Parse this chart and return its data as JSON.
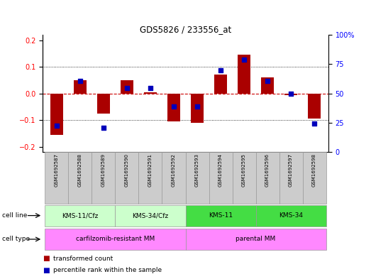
{
  "title": "GDS5826 / 233556_at",
  "samples": [
    "GSM1692587",
    "GSM1692588",
    "GSM1692589",
    "GSM1692590",
    "GSM1692591",
    "GSM1692592",
    "GSM1692593",
    "GSM1692594",
    "GSM1692595",
    "GSM1692596",
    "GSM1692597",
    "GSM1692598"
  ],
  "transformed_count": [
    -0.155,
    0.05,
    -0.075,
    0.05,
    0.005,
    -0.105,
    -0.11,
    0.07,
    0.145,
    0.06,
    -0.005,
    -0.095
  ],
  "percentile_rank": [
    20,
    62,
    18,
    55,
    55,
    38,
    38,
    72,
    82,
    62,
    50,
    22
  ],
  "ylim_left": [
    -0.22,
    0.22
  ],
  "ylim_right": [
    0,
    100
  ],
  "yticks_left": [
    -0.2,
    -0.1,
    0.0,
    0.1,
    0.2
  ],
  "yticks_right": [
    0,
    25,
    50,
    75,
    100
  ],
  "cell_line_groups": [
    {
      "label": "KMS-11/Cfz",
      "start": 0,
      "end": 3,
      "color": "#CCFFCC"
    },
    {
      "label": "KMS-34/Cfz",
      "start": 3,
      "end": 6,
      "color": "#CCFFCC"
    },
    {
      "label": "KMS-11",
      "start": 6,
      "end": 9,
      "color": "#44DD44"
    },
    {
      "label": "KMS-34",
      "start": 9,
      "end": 12,
      "color": "#44DD44"
    }
  ],
  "cell_type_groups": [
    {
      "label": "carfilzomib-resistant MM",
      "start": 0,
      "end": 6,
      "color": "#FF88FF"
    },
    {
      "label": "parental MM",
      "start": 6,
      "end": 12,
      "color": "#FF88FF"
    }
  ],
  "bar_color": "#AA0000",
  "dot_color": "#0000BB",
  "zero_line_color": "#CC0000",
  "bar_width": 0.55,
  "dot_size": 14,
  "legend_red_label": "transformed count",
  "legend_blue_label": "percentile rank within the sample",
  "sample_box_color": "#CCCCCC",
  "sample_box_edge": "#999999"
}
